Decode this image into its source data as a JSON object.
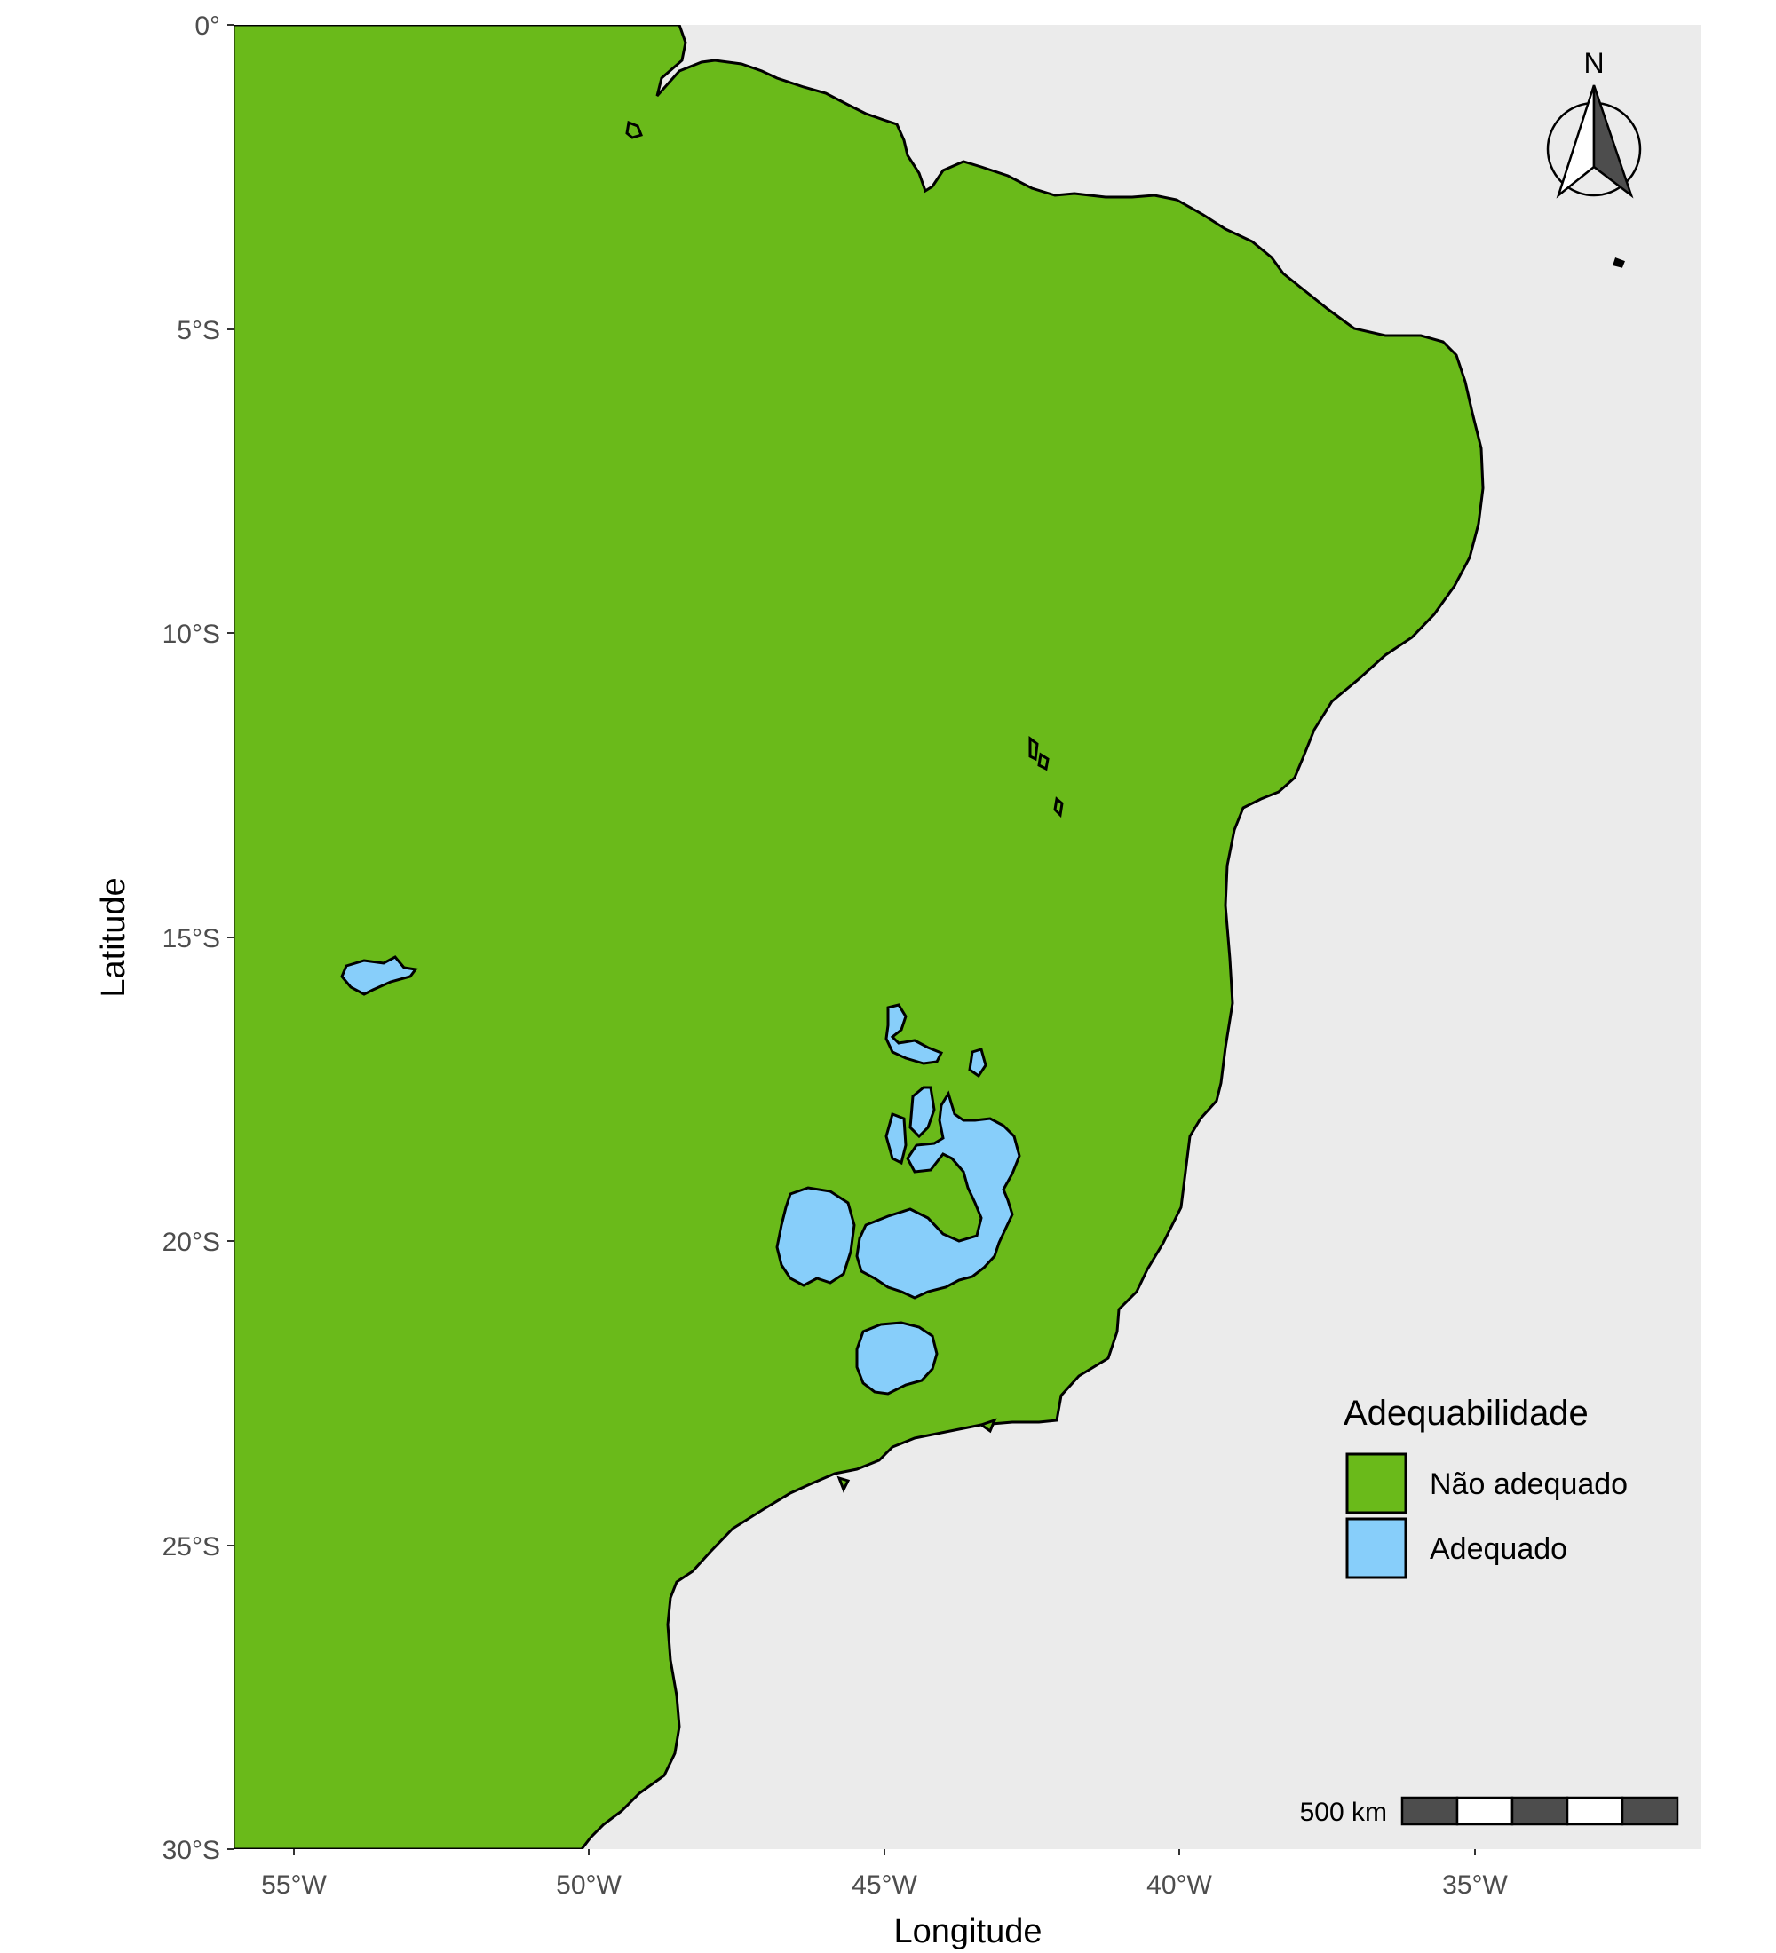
{
  "map": {
    "x_axis": {
      "label": "Longitude",
      "ticks": [
        "55°W",
        "50°W",
        "45°W",
        "40°W",
        "35°W"
      ],
      "tick_values": [
        -55,
        -50,
        -45,
        -40,
        -35
      ],
      "range": [
        -56,
        -31.2
      ]
    },
    "y_axis": {
      "label": "Latitude",
      "ticks": [
        "0°",
        "5°S",
        "10°S",
        "15°S",
        "20°S",
        "25°S",
        "30°S"
      ],
      "tick_values": [
        0,
        -5,
        -10,
        -15,
        -20,
        -25,
        -30
      ],
      "range": [
        -30,
        0
      ]
    },
    "legend": {
      "title": "Adequabilidade",
      "items": [
        {
          "label": "Não adequado",
          "color": "#6aba1a"
        },
        {
          "label": "Adequado",
          "color": "#87cefa"
        }
      ],
      "placement": "bottom-right"
    },
    "scale_bar": {
      "label": "500 km"
    },
    "north_arrow": {
      "label": "N"
    },
    "colors": {
      "ocean": "#ebebeb",
      "other_land": "#bebebe",
      "unsuitable": "#6aba1a",
      "suitable": "#87cefa",
      "outline": "#000000"
    }
  }
}
